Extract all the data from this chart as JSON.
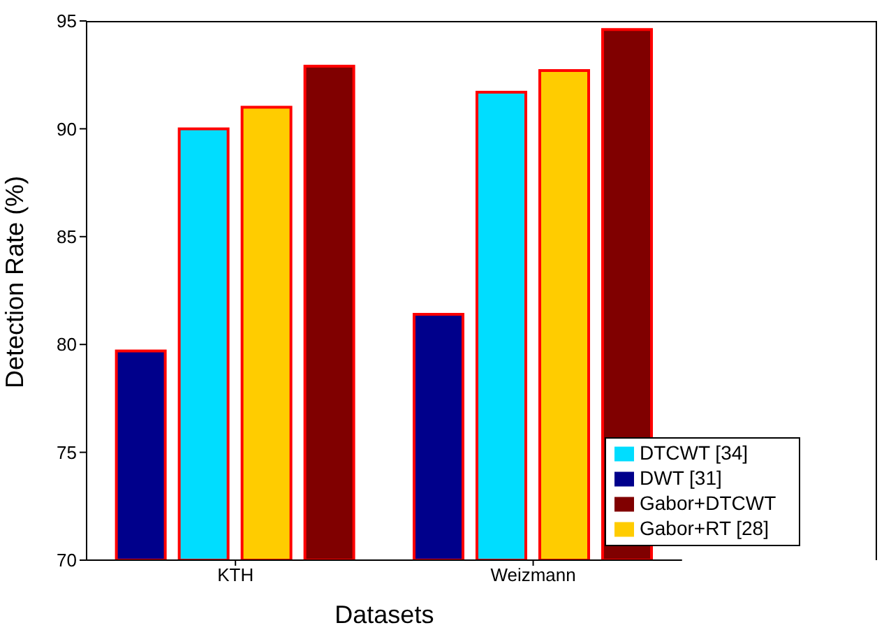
{
  "chart_data": {
    "type": "bar",
    "xlabel": "Datasets",
    "ylabel": "Detection Rate (%)",
    "categories": [
      "KTH",
      "Weizmann"
    ],
    "series": [
      {
        "name": "DWT [31]",
        "color": "#00008b",
        "values": [
          79.7,
          81.4
        ]
      },
      {
        "name": "DTCWT [34]",
        "color": "#00ddff",
        "values": [
          90.0,
          91.7
        ]
      },
      {
        "name": "Gabor+RT [28]",
        "color": "#ffcc00",
        "values": [
          91.0,
          92.7
        ]
      },
      {
        "name": "Gabor+DTCWT",
        "color": "#800000",
        "values": [
          92.9,
          94.6
        ]
      }
    ],
    "ylim": [
      70,
      95
    ],
    "yticks": [
      70,
      75,
      80,
      85,
      90,
      95
    ],
    "grid": false,
    "legend": "bottom right"
  }
}
